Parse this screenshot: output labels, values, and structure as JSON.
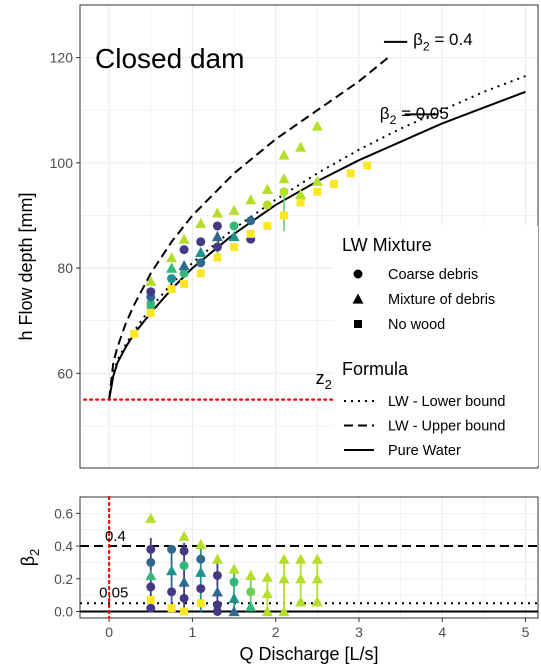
{
  "chart_data": [
    {
      "type": "scatter",
      "panel": "top",
      "title": "Closed dam",
      "xlabel": "",
      "ylabel": "h Flow depth [mm]",
      "xlim": [
        -0.35,
        5.15
      ],
      "ylim": [
        42,
        130
      ],
      "x_ticks": [
        0,
        1,
        2,
        3,
        4,
        5
      ],
      "y_ticks": [
        60,
        80,
        100,
        120
      ],
      "grid": true,
      "legend_position": "right",
      "annotations": [
        {
          "text": "z",
          "sub": "2",
          "x": 2.48,
          "y": 58
        },
        {
          "text": "β",
          "sub": "2",
          "tail": " = 0.4",
          "x": 3.65,
          "y": 123.5
        },
        {
          "text": "β",
          "sub": "2",
          "tail": " = 0.05",
          "x": 3.25,
          "y": 109.5
        }
      ],
      "legend_mixture": {
        "title": "LW Mixture",
        "items": [
          {
            "label": "Coarse debris",
            "marker": "circle"
          },
          {
            "label": "Mixture of debris",
            "marker": "triangle"
          },
          {
            "label": "No wood",
            "marker": "square"
          }
        ]
      },
      "legend_formula": {
        "title": "Formula",
        "items": [
          {
            "label": "LW - Lower bound",
            "dash": "dotted"
          },
          {
            "label": "LW - Upper bound",
            "dash": "dashed"
          },
          {
            "label": "Pure Water",
            "dash": "solid"
          }
        ]
      },
      "lines": [
        {
          "name": "LW - Upper bound",
          "dash": "dashed",
          "x": [
            0,
            0.05,
            0.1,
            0.2,
            0.3,
            0.5,
            0.75,
            1.0,
            1.25,
            1.5,
            2.0,
            2.5,
            3.0,
            3.35
          ],
          "y": [
            55,
            62,
            65,
            69.5,
            73,
            79,
            85,
            90,
            94,
            98,
            104.5,
            110,
            115.5,
            120
          ]
        },
        {
          "name": "LW - Lower bound",
          "dash": "dotted",
          "x": [
            0,
            0.05,
            0.1,
            0.2,
            0.3,
            0.5,
            0.75,
            1.0,
            1.5,
            2.0,
            2.5,
            3.0,
            3.5,
            4.0,
            4.5,
            5.0
          ],
          "y": [
            55,
            60,
            62.5,
            65.5,
            68,
            72.5,
            77,
            81,
            87.5,
            93,
            98,
            102.5,
            106.5,
            110,
            113.5,
            116.5
          ]
        },
        {
          "name": "Pure Water",
          "dash": "solid",
          "x": [
            0,
            0.05,
            0.1,
            0.2,
            0.3,
            0.5,
            0.75,
            1.0,
            1.5,
            2.0,
            2.5,
            3.0,
            3.5,
            4.0,
            4.5,
            5.0
          ],
          "y": [
            55,
            59.5,
            62,
            65,
            67.5,
            71.5,
            76,
            80,
            86.5,
            92,
            96.5,
            100.5,
            104,
            107.5,
            110.5,
            113.5
          ]
        },
        {
          "name": "z2",
          "dash": "red-dotted",
          "x": [
            -0.3,
            2.8
          ],
          "y": [
            55,
            55
          ]
        }
      ],
      "points": [
        {
          "x": 0.3,
          "y": 67.5,
          "marker": "square",
          "color": "#fde725"
        },
        {
          "x": 0.5,
          "y": 71.5,
          "marker": "square",
          "color": "#fde725"
        },
        {
          "x": 0.5,
          "y": 73,
          "marker": "square",
          "color": "#35b779"
        },
        {
          "x": 0.5,
          "y": 74.5,
          "marker": "circle",
          "color": "#31688e"
        },
        {
          "x": 0.5,
          "y": 75.5,
          "marker": "circle",
          "color": "#443983"
        },
        {
          "x": 0.5,
          "y": 77.5,
          "marker": "triangle",
          "color": "#b5de2b"
        },
        {
          "x": 0.75,
          "y": 76,
          "marker": "square",
          "color": "#fde725"
        },
        {
          "x": 0.75,
          "y": 78,
          "marker": "circle",
          "color": "#21918c"
        },
        {
          "x": 0.75,
          "y": 80,
          "marker": "triangle",
          "color": "#35b779"
        },
        {
          "x": 0.75,
          "y": 82,
          "marker": "triangle",
          "color": "#b5de2b"
        },
        {
          "x": 0.9,
          "y": 77,
          "marker": "square",
          "color": "#fde725"
        },
        {
          "x": 0.9,
          "y": 79,
          "marker": "circle",
          "color": "#35b779"
        },
        {
          "x": 0.9,
          "y": 80.5,
          "marker": "triangle",
          "color": "#31688e"
        },
        {
          "x": 0.9,
          "y": 83.5,
          "marker": "circle",
          "color": "#443983"
        },
        {
          "x": 0.9,
          "y": 85.5,
          "marker": "triangle",
          "color": "#b5de2b"
        },
        {
          "x": 1.1,
          "y": 79,
          "marker": "square",
          "color": "#fde725"
        },
        {
          "x": 1.1,
          "y": 81,
          "marker": "circle",
          "color": "#31688e"
        },
        {
          "x": 1.1,
          "y": 83,
          "marker": "triangle",
          "color": "#21918c"
        },
        {
          "x": 1.1,
          "y": 85,
          "marker": "circle",
          "color": "#443983"
        },
        {
          "x": 1.1,
          "y": 88.5,
          "marker": "triangle",
          "color": "#b5de2b"
        },
        {
          "x": 1.3,
          "y": 82,
          "marker": "square",
          "color": "#fde725"
        },
        {
          "x": 1.3,
          "y": 84,
          "marker": "circle",
          "color": "#443983"
        },
        {
          "x": 1.3,
          "y": 86,
          "marker": "triangle",
          "color": "#31688e"
        },
        {
          "x": 1.3,
          "y": 88,
          "marker": "circle",
          "color": "#443983"
        },
        {
          "x": 1.3,
          "y": 90.5,
          "marker": "triangle",
          "color": "#b5de2b"
        },
        {
          "x": 1.5,
          "y": 84,
          "marker": "square",
          "color": "#fde725"
        },
        {
          "x": 1.5,
          "y": 86,
          "marker": "triangle",
          "color": "#21918c"
        },
        {
          "x": 1.5,
          "y": 88,
          "marker": "circle",
          "color": "#35b779"
        },
        {
          "x": 1.5,
          "y": 91,
          "marker": "triangle",
          "color": "#b5de2b"
        },
        {
          "x": 1.7,
          "y": 85.5,
          "marker": "circle",
          "color": "#443983"
        },
        {
          "x": 1.7,
          "y": 86.5,
          "marker": "square",
          "color": "#fde725"
        },
        {
          "x": 1.7,
          "y": 89,
          "marker": "circle",
          "color": "#31688e"
        },
        {
          "x": 1.7,
          "y": 93,
          "marker": "triangle",
          "color": "#b5de2b"
        },
        {
          "x": 1.9,
          "y": 88,
          "marker": "square",
          "color": "#fde725"
        },
        {
          "x": 1.9,
          "y": 92,
          "marker": "circle",
          "color": "#b5de2b"
        },
        {
          "x": 1.9,
          "y": 95,
          "marker": "triangle",
          "color": "#b5de2b"
        },
        {
          "x": 2.1,
          "y": 90,
          "marker": "square",
          "color": "#fde725"
        },
        {
          "x": 2.1,
          "y": 94.5,
          "marker": "circle",
          "color": "#b5de2b"
        },
        {
          "x": 2.1,
          "y": 97,
          "marker": "triangle",
          "color": "#b5de2b"
        },
        {
          "x": 2.1,
          "y": 101.5,
          "marker": "triangle",
          "color": "#b5de2b"
        },
        {
          "x": 2.3,
          "y": 92.5,
          "marker": "square",
          "color": "#fde725"
        },
        {
          "x": 2.3,
          "y": 94,
          "marker": "triangle",
          "color": "#b5de2b"
        },
        {
          "x": 2.3,
          "y": 103,
          "marker": "triangle",
          "color": "#b5de2b"
        },
        {
          "x": 2.5,
          "y": 94.5,
          "marker": "square",
          "color": "#fde725"
        },
        {
          "x": 2.5,
          "y": 96.5,
          "marker": "triangle",
          "color": "#b5de2b"
        },
        {
          "x": 2.5,
          "y": 107,
          "marker": "triangle",
          "color": "#b5de2b"
        },
        {
          "x": 2.7,
          "y": 96,
          "marker": "square",
          "color": "#fde725"
        },
        {
          "x": 2.9,
          "y": 98,
          "marker": "square",
          "color": "#fde725"
        },
        {
          "x": 3.1,
          "y": 99.5,
          "marker": "square",
          "color": "#fde725"
        }
      ],
      "error_bars": [
        {
          "x": 2.1,
          "y_low": 87,
          "y_high": 94
        },
        {
          "x": 1.3,
          "y_low": 82,
          "y_high": 87
        }
      ]
    },
    {
      "type": "scatter",
      "panel": "bottom",
      "xlabel": "Q Discharge [L/s]",
      "ylabel": "β",
      "ylabel_sub": "2",
      "xlim": [
        -0.35,
        5.15
      ],
      "ylim": [
        -0.04,
        0.7
      ],
      "x_ticks": [
        0,
        1,
        2,
        3,
        4,
        5
      ],
      "y_ticks": [
        0.0,
        0.2,
        0.4,
        0.6
      ],
      "y_tick_labels": [
        "0.0",
        "0.2",
        "0.4",
        "0.6"
      ],
      "grid": true,
      "hlines": [
        {
          "y": 0.4,
          "dash": "dashed",
          "label": "0.4"
        },
        {
          "y": 0.05,
          "dash": "dotted",
          "label": "0.05"
        },
        {
          "y": 0.0,
          "dash": "solid",
          "label": ""
        }
      ],
      "vlines": [
        {
          "x": 0.0,
          "dash": "red-dotted"
        }
      ],
      "error_bars": [
        {
          "x": 0.5,
          "y_low": 0.0,
          "y_high": 0.45,
          "color": "#443983"
        },
        {
          "x": 0.75,
          "y_low": 0.0,
          "y_high": 0.38,
          "color": "#31688e"
        },
        {
          "x": 0.9,
          "y_low": 0.0,
          "y_high": 0.42,
          "color": "#443983"
        },
        {
          "x": 1.1,
          "y_low": 0.0,
          "y_high": 0.4,
          "color": "#21918c"
        },
        {
          "x": 1.3,
          "y_low": 0.0,
          "y_high": 0.32,
          "color": "#443983"
        },
        {
          "x": 1.5,
          "y_low": 0.0,
          "y_high": 0.28,
          "color": "#35b779"
        },
        {
          "x": 1.7,
          "y_low": 0.0,
          "y_high": 0.25,
          "color": "#6ece58"
        },
        {
          "x": 1.9,
          "y_low": 0.0,
          "y_high": 0.22,
          "color": "#b5de2b"
        },
        {
          "x": 2.1,
          "y_low": 0.0,
          "y_high": 0.32,
          "color": "#b5de2b"
        },
        {
          "x": 2.3,
          "y_low": 0.05,
          "y_high": 0.32,
          "color": "#b5de2b"
        },
        {
          "x": 2.5,
          "y_low": 0.05,
          "y_high": 0.32,
          "color": "#b5de2b"
        }
      ],
      "points": [
        {
          "x": 0.5,
          "y": 0.57,
          "marker": "triangle",
          "color": "#b5de2b"
        },
        {
          "x": 0.5,
          "y": 0.38,
          "marker": "circle",
          "color": "#443983"
        },
        {
          "x": 0.5,
          "y": 0.3,
          "marker": "circle",
          "color": "#31688e"
        },
        {
          "x": 0.5,
          "y": 0.22,
          "marker": "triangle",
          "color": "#35b779"
        },
        {
          "x": 0.5,
          "y": 0.15,
          "marker": "circle",
          "color": "#443983"
        },
        {
          "x": 0.5,
          "y": 0.07,
          "marker": "square",
          "color": "#fde725"
        },
        {
          "x": 0.5,
          "y": 0.02,
          "marker": "circle",
          "color": "#443983"
        },
        {
          "x": 0.75,
          "y": 0.38,
          "marker": "circle",
          "color": "#31688e"
        },
        {
          "x": 0.75,
          "y": 0.25,
          "marker": "triangle",
          "color": "#21918c"
        },
        {
          "x": 0.75,
          "y": 0.12,
          "marker": "circle",
          "color": "#443983"
        },
        {
          "x": 0.75,
          "y": 0.02,
          "marker": "square",
          "color": "#fde725"
        },
        {
          "x": 0.9,
          "y": 0.46,
          "marker": "triangle",
          "color": "#b5de2b"
        },
        {
          "x": 0.9,
          "y": 0.37,
          "marker": "circle",
          "color": "#443983"
        },
        {
          "x": 0.9,
          "y": 0.28,
          "marker": "circle",
          "color": "#35b779"
        },
        {
          "x": 0.9,
          "y": 0.18,
          "marker": "triangle",
          "color": "#31688e"
        },
        {
          "x": 0.9,
          "y": 0.08,
          "marker": "circle",
          "color": "#443983"
        },
        {
          "x": 0.9,
          "y": 0.0,
          "marker": "square",
          "color": "#fde725"
        },
        {
          "x": 1.1,
          "y": 0.41,
          "marker": "triangle",
          "color": "#b5de2b"
        },
        {
          "x": 1.1,
          "y": 0.32,
          "marker": "circle",
          "color": "#31688e"
        },
        {
          "x": 1.1,
          "y": 0.24,
          "marker": "triangle",
          "color": "#21918c"
        },
        {
          "x": 1.1,
          "y": 0.14,
          "marker": "circle",
          "color": "#443983"
        },
        {
          "x": 1.1,
          "y": 0.05,
          "marker": "square",
          "color": "#fde725"
        },
        {
          "x": 1.3,
          "y": 0.32,
          "marker": "triangle",
          "color": "#b5de2b"
        },
        {
          "x": 1.3,
          "y": 0.22,
          "marker": "circle",
          "color": "#443983"
        },
        {
          "x": 1.3,
          "y": 0.12,
          "marker": "triangle",
          "color": "#31688e"
        },
        {
          "x": 1.3,
          "y": 0.04,
          "marker": "circle",
          "color": "#443983"
        },
        {
          "x": 1.3,
          "y": 0.0,
          "marker": "circle",
          "color": "#443983"
        },
        {
          "x": 1.5,
          "y": 0.26,
          "marker": "triangle",
          "color": "#b5de2b"
        },
        {
          "x": 1.5,
          "y": 0.18,
          "marker": "circle",
          "color": "#35b779"
        },
        {
          "x": 1.5,
          "y": 0.08,
          "marker": "triangle",
          "color": "#21918c"
        },
        {
          "x": 1.5,
          "y": 0.0,
          "marker": "triangle",
          "color": "#31688e"
        },
        {
          "x": 1.7,
          "y": 0.22,
          "marker": "triangle",
          "color": "#b5de2b"
        },
        {
          "x": 1.7,
          "y": 0.12,
          "marker": "circle",
          "color": "#6ece58"
        },
        {
          "x": 1.7,
          "y": 0.03,
          "marker": "triangle",
          "color": "#35b779"
        },
        {
          "x": 1.9,
          "y": 0.21,
          "marker": "triangle",
          "color": "#b5de2b"
        },
        {
          "x": 1.9,
          "y": 0.11,
          "marker": "triangle",
          "color": "#b5de2b"
        },
        {
          "x": 1.9,
          "y": 0.0,
          "marker": "triangle",
          "color": "#b5de2b"
        },
        {
          "x": 2.1,
          "y": 0.32,
          "marker": "triangle",
          "color": "#b5de2b"
        },
        {
          "x": 2.1,
          "y": 0.2,
          "marker": "triangle",
          "color": "#b5de2b"
        },
        {
          "x": 2.1,
          "y": 0.0,
          "marker": "triangle",
          "color": "#b5de2b"
        },
        {
          "x": 2.3,
          "y": 0.32,
          "marker": "triangle",
          "color": "#b5de2b"
        },
        {
          "x": 2.3,
          "y": 0.2,
          "marker": "triangle",
          "color": "#b5de2b"
        },
        {
          "x": 2.3,
          "y": 0.06,
          "marker": "triangle",
          "color": "#b5de2b"
        },
        {
          "x": 2.5,
          "y": 0.32,
          "marker": "triangle",
          "color": "#b5de2b"
        },
        {
          "x": 2.5,
          "y": 0.2,
          "marker": "triangle",
          "color": "#b5de2b"
        },
        {
          "x": 2.5,
          "y": 0.06,
          "marker": "triangle",
          "color": "#b5de2b"
        }
      ]
    }
  ]
}
